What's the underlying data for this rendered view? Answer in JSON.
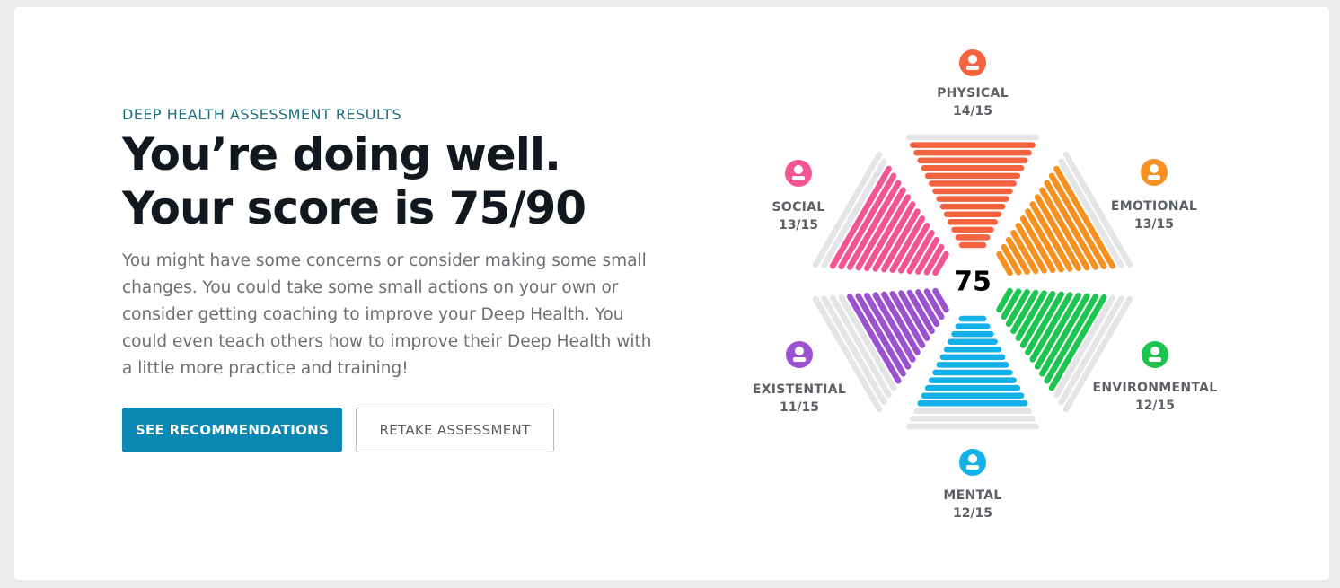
{
  "header": {
    "eyebrow": "DEEP HEALTH ASSESSMENT RESULTS",
    "title_line1": "You’re doing well.",
    "title_line2": "Your score is 75/90",
    "body": "You might have some concerns or consider making some small changes. You could take some small actions on your own or consider getting coaching to improve your Deep Health. You could even teach others how to improve their Deep Health with a little more practice and training!"
  },
  "buttons": {
    "primary": "SEE RECOMMENDATIONS",
    "secondary": "RETAKE ASSESSMENT"
  },
  "chart_data": {
    "type": "hexagon",
    "total": 75,
    "segments": [
      {
        "name": "PHYSICAL",
        "score": 14,
        "max": 15,
        "label": "14/15",
        "color": "#f4633f"
      },
      {
        "name": "EMOTIONAL",
        "score": 13,
        "max": 15,
        "label": "13/15",
        "color": "#f7901e"
      },
      {
        "name": "ENVIRONMENTAL",
        "score": 12,
        "max": 15,
        "label": "12/15",
        "color": "#1cc550"
      },
      {
        "name": "MENTAL",
        "score": 12,
        "max": 15,
        "label": "12/15",
        "color": "#14b0e8"
      },
      {
        "name": "EXISTENTIAL",
        "score": 11,
        "max": 15,
        "label": "11/15",
        "color": "#9b51d0"
      },
      {
        "name": "SOCIAL",
        "score": 13,
        "max": 15,
        "label": "13/15",
        "color": "#f25592"
      }
    ],
    "track_color": "#e4e5e7"
  }
}
